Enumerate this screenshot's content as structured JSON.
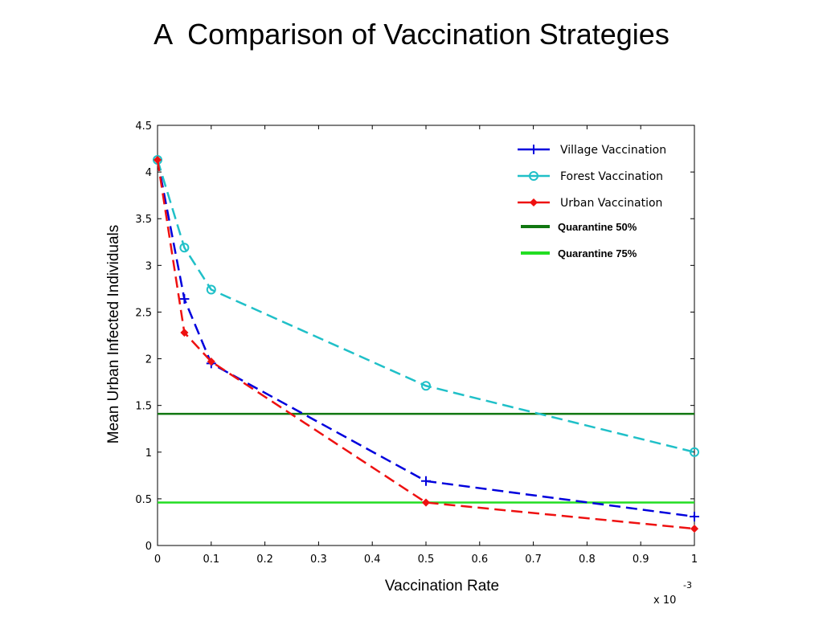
{
  "slide_title": "A  Comparison of Vaccination Strategies",
  "chart_data": {
    "type": "line",
    "xlabel": "Vaccination Rate",
    "ylabel": "Mean Urban Infected Individuals",
    "x_multiplier_label": "x 10",
    "x_multiplier_exponent": "-3",
    "xlim": [
      0,
      1
    ],
    "ylim": [
      0,
      4.5
    ],
    "x_ticks": [
      "0",
      "0.1",
      "0.2",
      "0.3",
      "0.4",
      "0.5",
      "0.6",
      "0.7",
      "0.8",
      "0.9",
      "1"
    ],
    "y_ticks": [
      "0",
      "0.5",
      "1",
      "1.5",
      "2",
      "2.5",
      "3",
      "3.5",
      "4",
      "4.5"
    ],
    "grid": false,
    "legend_position": "top-right",
    "series": [
      {
        "name": "Village Vaccination",
        "color": "#0000dd",
        "marker": "plus",
        "dashed": true,
        "x": [
          0,
          0.05,
          0.1,
          0.5,
          1
        ],
        "y": [
          4.13,
          2.64,
          1.95,
          0.69,
          0.31
        ]
      },
      {
        "name": "Forest Vaccination",
        "color": "#20c0c8",
        "marker": "circle",
        "dashed": true,
        "x": [
          0,
          0.05,
          0.1,
          0.5,
          1
        ],
        "y": [
          4.13,
          3.19,
          2.74,
          1.71,
          1.0
        ]
      },
      {
        "name": "Urban Vaccination",
        "color": "#ee1111",
        "marker": "diamond",
        "dashed": true,
        "x": [
          0,
          0.05,
          0.1,
          0.5,
          1
        ],
        "y": [
          4.13,
          2.28,
          1.97,
          0.46,
          0.18
        ]
      }
    ],
    "reference_lines": [
      {
        "name": "Quarantine 50%",
        "color": "#117711",
        "y": 1.41
      },
      {
        "name": "Quarantine 75%",
        "color": "#22dd22",
        "y": 0.46
      }
    ]
  }
}
